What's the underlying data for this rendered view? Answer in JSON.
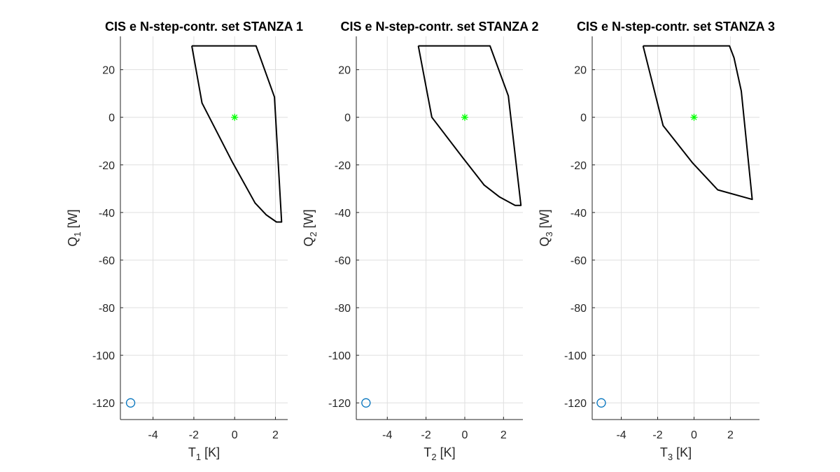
{
  "chart_data": [
    {
      "type": "line",
      "title": "CIS e N-step-contr. set STANZA 1",
      "xlabel": {
        "main": "T",
        "sub": "1",
        "unit": "[K]"
      },
      "ylabel": {
        "main": "Q",
        "sub": "1",
        "unit": "[W]"
      },
      "xlim": [
        -5.6,
        2.6
      ],
      "ylim": [
        -127,
        34
      ],
      "xticks": [
        -4,
        -2,
        0,
        2
      ],
      "yticks": [
        -120,
        -100,
        -80,
        -60,
        -40,
        -20,
        0,
        20
      ],
      "grid": true,
      "series": [
        {
          "kind": "polygon",
          "color": "#000000",
          "x": [
            -2.1,
            1.05,
            1.95,
            2.3,
            2.05,
            1.55,
            1.0,
            -0.1,
            -1.6,
            -2.1
          ],
          "y": [
            30,
            30,
            8.5,
            -44,
            -44,
            -41,
            -36,
            -19,
            6,
            30
          ]
        },
        {
          "kind": "marker-star",
          "color": "#00ff00",
          "x": [
            0
          ],
          "y": [
            0
          ]
        },
        {
          "kind": "marker-circle",
          "color": "#0072bd",
          "x": [
            -5.1
          ],
          "y": [
            -120
          ]
        }
      ]
    },
    {
      "type": "line",
      "title": "CIS e N-step-contr. set STANZA 2",
      "xlabel": {
        "main": "T",
        "sub": "2",
        "unit": "[K]"
      },
      "ylabel": {
        "main": "Q",
        "sub": "2",
        "unit": "[W]"
      },
      "xlim": [
        -5.6,
        3.0
      ],
      "ylim": [
        -127,
        34
      ],
      "xticks": [
        -4,
        -2,
        0,
        2
      ],
      "yticks": [
        -120,
        -100,
        -80,
        -60,
        -40,
        -20,
        0,
        20
      ],
      "grid": true,
      "series": [
        {
          "kind": "polygon",
          "color": "#000000",
          "x": [
            -2.4,
            1.3,
            2.25,
            2.9,
            2.6,
            1.8,
            1.0,
            -0.1,
            -1.7,
            -2.4
          ],
          "y": [
            30,
            30,
            9,
            -37,
            -37,
            -33.5,
            -28.5,
            -17,
            0,
            30
          ]
        },
        {
          "kind": "marker-star",
          "color": "#00ff00",
          "x": [
            0
          ],
          "y": [
            0
          ]
        },
        {
          "kind": "marker-circle",
          "color": "#0072bd",
          "x": [
            -5.1
          ],
          "y": [
            -120
          ]
        }
      ]
    },
    {
      "type": "line",
      "title": "CIS e N-step-contr. set STANZA 3",
      "xlabel": {
        "main": "T",
        "sub": "3",
        "unit": "[K]"
      },
      "ylabel": {
        "main": "Q",
        "sub": "3",
        "unit": "[W]"
      },
      "xlim": [
        -5.6,
        3.6
      ],
      "ylim": [
        -127,
        34
      ],
      "xticks": [
        -4,
        -2,
        0,
        2
      ],
      "yticks": [
        -120,
        -100,
        -80,
        -60,
        -40,
        -20,
        0,
        20
      ],
      "grid": true,
      "series": [
        {
          "kind": "polygon",
          "color": "#000000",
          "x": [
            -2.8,
            1.95,
            2.2,
            2.6,
            3.2,
            1.3,
            -0.1,
            -1.7,
            -2.8
          ],
          "y": [
            30,
            30,
            25,
            11,
            -34.5,
            -30.5,
            -19,
            -3.5,
            30
          ]
        },
        {
          "kind": "marker-star",
          "color": "#00ff00",
          "x": [
            0
          ],
          "y": [
            0
          ]
        },
        {
          "kind": "marker-circle",
          "color": "#0072bd",
          "x": [
            -5.1
          ],
          "y": [
            -120
          ]
        }
      ]
    }
  ]
}
